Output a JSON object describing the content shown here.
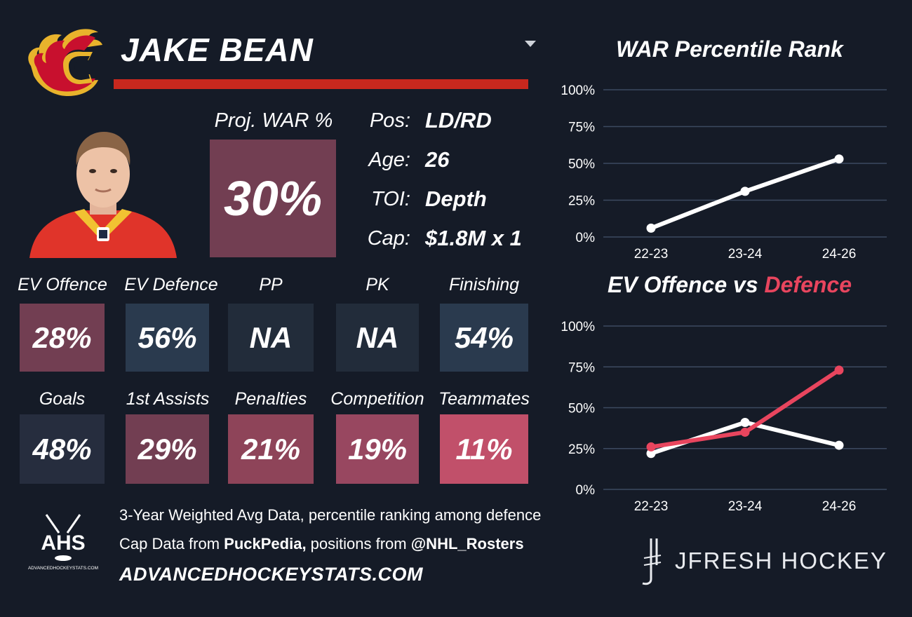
{
  "player": {
    "name": "JAKE BEAN"
  },
  "proj_war": {
    "label": "Proj. WAR %",
    "value": "30%",
    "color": "#723e52"
  },
  "bio": [
    {
      "label": "Pos:",
      "value": "LD/RD"
    },
    {
      "label": "Age:",
      "value": "26"
    },
    {
      "label": "TOI:",
      "value": "Depth"
    },
    {
      "label": "Cap:",
      "value": "$1.8M x 1"
    }
  ],
  "stats_row1": [
    {
      "label": "EV Offence",
      "value": "28%",
      "color": "#723e52"
    },
    {
      "label": "EV Defence",
      "value": "56%",
      "color": "#2a3a4e"
    },
    {
      "label": "PP",
      "value": "NA",
      "color": "#222c3a"
    },
    {
      "label": "PK",
      "value": "NA",
      "color": "#222c3a"
    },
    {
      "label": "Finishing",
      "value": "54%",
      "color": "#2a3a4e"
    }
  ],
  "stats_row2": [
    {
      "label": "Goals",
      "value": "48%",
      "color": "#262d3e"
    },
    {
      "label": "1st Assists",
      "value": "29%",
      "color": "#723e52"
    },
    {
      "label": "Penalties",
      "value": "21%",
      "color": "#8e4459"
    },
    {
      "label": "Competition",
      "value": "19%",
      "color": "#984760"
    },
    {
      "label": "Teammates",
      "value": "11%",
      "color": "#c1506a"
    }
  ],
  "chart_data": [
    {
      "type": "line",
      "title": "WAR Percentile Rank",
      "categories": [
        "22-23",
        "23-24",
        "24-26"
      ],
      "series": [
        {
          "values": [
            6,
            31,
            53
          ],
          "color": "#ffffff"
        }
      ],
      "yticks": [
        "100%",
        "75%",
        "50%",
        "25%",
        "0%"
      ],
      "ylim": [
        0,
        100
      ],
      "grid": true
    },
    {
      "type": "line",
      "title_parts": [
        "EV Offence vs",
        "Defence"
      ],
      "title_colors": [
        "#ffffff",
        "#e8455e"
      ],
      "categories": [
        "22-23",
        "23-24",
        "24-26"
      ],
      "series": [
        {
          "values": [
            22,
            41,
            27
          ],
          "color": "#ffffff"
        },
        {
          "values": [
            26,
            35,
            73
          ],
          "color": "#e8455e"
        }
      ],
      "yticks": [
        "100%",
        "75%",
        "50%",
        "25%",
        "0%"
      ],
      "ylim": [
        0,
        100
      ],
      "grid": true
    }
  ],
  "footer": {
    "logo_text": "AHS",
    "logo_sub": "ADVANCEDHOCKEYSTATS.COM",
    "line1": "3-Year Weighted Avg Data, percentile ranking among defence",
    "line2_a": "Cap Data from ",
    "line2_b": "PuckPedia,",
    "line2_c": " positions from ",
    "line2_d": "@NHL_Rosters",
    "url": "ADVANCEDHOCKEYSTATS.COM",
    "brand": "JFRESH HOCKEY"
  }
}
